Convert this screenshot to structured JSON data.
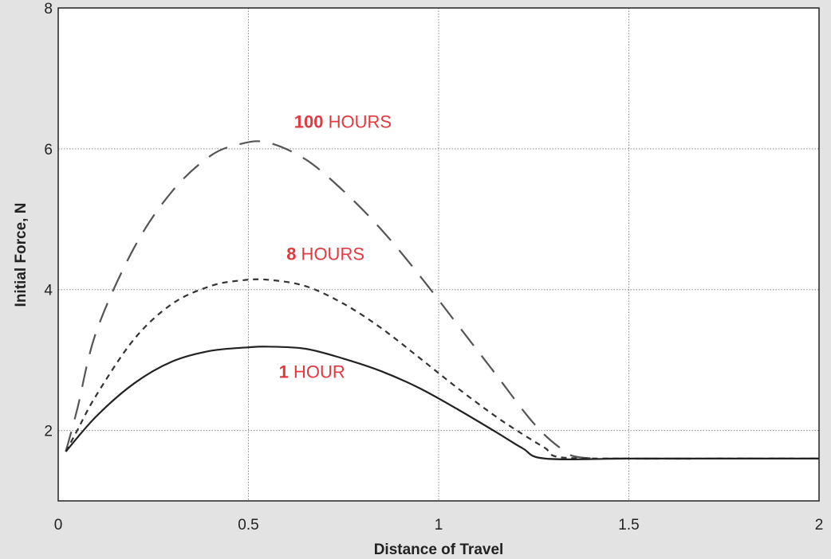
{
  "chart_data": {
    "type": "line",
    "title": "",
    "xlabel": "Distance of Travel",
    "ylabel": "Initial Force, N",
    "xlim": [
      0,
      2
    ],
    "ylim": [
      1,
      8
    ],
    "x_ticks": [
      "0",
      "0.5",
      "1",
      "1.5",
      "2"
    ],
    "y_ticks": [
      "2",
      "4",
      "6",
      "8"
    ],
    "grid": true,
    "grid_style": "dotted",
    "series": [
      {
        "label": {
          "number": "1",
          "unit": " HOUR"
        },
        "dash": "solid",
        "color": "#222222",
        "points": [
          [
            0.02,
            1.7
          ],
          [
            0.1,
            2.2
          ],
          [
            0.2,
            2.67
          ],
          [
            0.3,
            2.98
          ],
          [
            0.4,
            3.13
          ],
          [
            0.5,
            3.18
          ],
          [
            0.55,
            3.19
          ],
          [
            0.65,
            3.16
          ],
          [
            0.75,
            3.02
          ],
          [
            0.85,
            2.84
          ],
          [
            0.95,
            2.6
          ],
          [
            1.05,
            2.3
          ],
          [
            1.15,
            1.98
          ],
          [
            1.22,
            1.75
          ],
          [
            1.28,
            1.6
          ],
          [
            1.5,
            1.6
          ],
          [
            1.75,
            1.6
          ],
          [
            2.0,
            1.6
          ]
        ]
      },
      {
        "label": {
          "number": "8",
          "unit": " HOURS"
        },
        "dash": "short-dash",
        "color": "#333333",
        "points": [
          [
            0.02,
            1.7
          ],
          [
            0.05,
            2.0
          ],
          [
            0.1,
            2.5
          ],
          [
            0.2,
            3.3
          ],
          [
            0.3,
            3.8
          ],
          [
            0.4,
            4.05
          ],
          [
            0.48,
            4.13
          ],
          [
            0.55,
            4.14
          ],
          [
            0.65,
            4.05
          ],
          [
            0.75,
            3.8
          ],
          [
            0.85,
            3.45
          ],
          [
            0.95,
            3.03
          ],
          [
            1.05,
            2.6
          ],
          [
            1.15,
            2.2
          ],
          [
            1.22,
            1.95
          ],
          [
            1.28,
            1.75
          ],
          [
            1.32,
            1.62
          ],
          [
            1.5,
            1.6
          ],
          [
            1.75,
            1.6
          ],
          [
            2.0,
            1.6
          ]
        ]
      },
      {
        "label": {
          "number": "100",
          "unit": " HOURS"
        },
        "dash": "long-dash",
        "color": "#555555",
        "points": [
          [
            0.02,
            1.7
          ],
          [
            0.05,
            2.3
          ],
          [
            0.1,
            3.4
          ],
          [
            0.2,
            4.6
          ],
          [
            0.3,
            5.4
          ],
          [
            0.4,
            5.9
          ],
          [
            0.48,
            6.07
          ],
          [
            0.55,
            6.09
          ],
          [
            0.65,
            5.85
          ],
          [
            0.75,
            5.4
          ],
          [
            0.85,
            4.85
          ],
          [
            0.95,
            4.2
          ],
          [
            1.05,
            3.5
          ],
          [
            1.15,
            2.8
          ],
          [
            1.25,
            2.1
          ],
          [
            1.32,
            1.75
          ],
          [
            1.37,
            1.62
          ],
          [
            1.5,
            1.6
          ],
          [
            1.75,
            1.6
          ],
          [
            2.0,
            1.6
          ]
        ]
      }
    ],
    "annotations": [
      {
        "series_index": 2,
        "x": 0.62,
        "y": 6.3
      },
      {
        "series_index": 1,
        "x": 0.6,
        "y": 4.42
      },
      {
        "series_index": 0,
        "x": 0.58,
        "y": 2.75
      }
    ]
  }
}
